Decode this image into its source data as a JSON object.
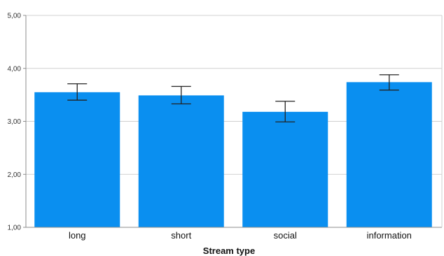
{
  "chart_data": {
    "type": "bar",
    "categories": [
      "long",
      "short",
      "social",
      "information"
    ],
    "values": [
      3.55,
      3.49,
      3.18,
      3.74
    ],
    "error_low": [
      3.4,
      3.33,
      2.99,
      3.59
    ],
    "error_high": [
      3.71,
      3.66,
      3.38,
      3.88
    ],
    "ylim": [
      1,
      5
    ],
    "yticks": [
      "1,00",
      "2,00",
      "3,00",
      "4,00",
      "5,00"
    ],
    "ytick_values": [
      1,
      2,
      3,
      4,
      5
    ],
    "xlabel": "Stream type",
    "ylabel": "",
    "grid": "horizontal",
    "bar_color": "#0a8ff0",
    "error_bar_color": "#222222",
    "grid_color": "#d0d0d0",
    "axis_color": "#8c8c8c"
  }
}
